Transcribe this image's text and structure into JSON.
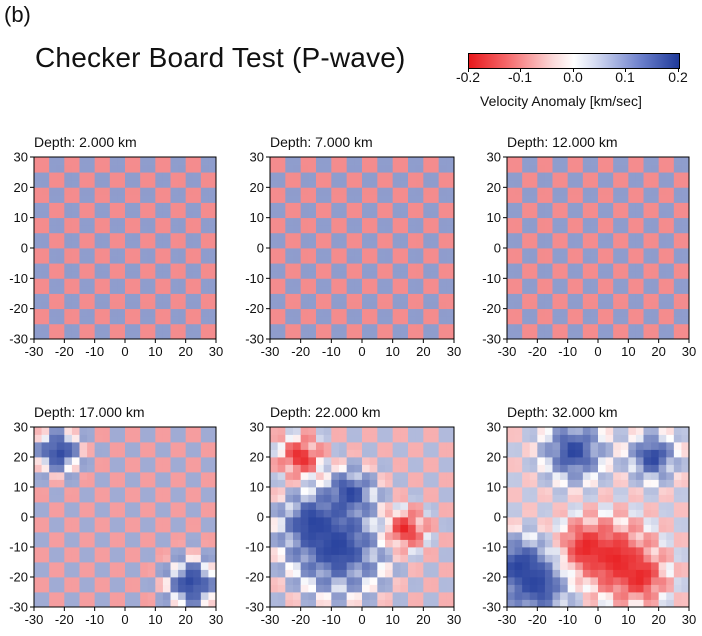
{
  "figure": {
    "panel_label": "(b)",
    "title": "Checker Board Test (P-wave)"
  },
  "colorbar": {
    "ticks": [
      "-0.2",
      "-0.1",
      "0.0",
      "0.1",
      "0.2"
    ],
    "label": "Velocity Anomaly [km/sec]",
    "colors": {
      "negative": "#e8191c",
      "zero": "#ffffff",
      "positive": "#1f3a9a"
    }
  },
  "chart_data": [
    {
      "type": "heatmap",
      "title": "Depth: 2.000 km",
      "xlim": [
        -30,
        30
      ],
      "ylim": [
        -30,
        30
      ],
      "xticks": [
        "-30",
        "-20",
        "-10",
        "0",
        "10",
        "20",
        "30"
      ],
      "yticks": [
        "-30",
        "-20",
        "-10",
        "0",
        "10",
        "20",
        "30"
      ],
      "checker_period_km": 10,
      "amplitude_range": [
        -0.2,
        0.2
      ],
      "recovery": "good"
    },
    {
      "type": "heatmap",
      "title": "Depth: 7.000 km",
      "xlim": [
        -30,
        30
      ],
      "ylim": [
        -30,
        30
      ],
      "xticks": [
        "-30",
        "-20",
        "-10",
        "0",
        "10",
        "20",
        "30"
      ],
      "yticks": [
        "-30",
        "-20",
        "-10",
        "0",
        "10",
        "20",
        "30"
      ],
      "checker_period_km": 10,
      "amplitude_range": [
        -0.2,
        0.2
      ],
      "recovery": "good"
    },
    {
      "type": "heatmap",
      "title": "Depth: 12.000 km",
      "xlim": [
        -30,
        30
      ],
      "ylim": [
        -30,
        30
      ],
      "xticks": [
        "-30",
        "-20",
        "-10",
        "0",
        "10",
        "20",
        "30"
      ],
      "yticks": [
        "-30",
        "-20",
        "-10",
        "0",
        "10",
        "20",
        "30"
      ],
      "checker_period_km": 10,
      "amplitude_range": [
        -0.2,
        0.2
      ],
      "recovery": "good"
    },
    {
      "type": "heatmap",
      "title": "Depth: 17.000 km",
      "xlim": [
        -30,
        30
      ],
      "ylim": [
        -30,
        30
      ],
      "xticks": [
        "-30",
        "-20",
        "-10",
        "0",
        "10",
        "20",
        "30"
      ],
      "yticks": [
        "-30",
        "-20",
        "-10",
        "0",
        "10",
        "20",
        "30"
      ],
      "checker_period_km": 10,
      "amplitude_range": [
        -0.2,
        0.2
      ],
      "recovery": "partial"
    },
    {
      "type": "heatmap",
      "title": "Depth: 22.000 km",
      "xlim": [
        -30,
        30
      ],
      "ylim": [
        -30,
        30
      ],
      "xticks": [
        "-30",
        "-20",
        "-10",
        "0",
        "10",
        "20",
        "30"
      ],
      "yticks": [
        "-30",
        "-20",
        "-10",
        "0",
        "10",
        "20",
        "30"
      ],
      "checker_period_km": 10,
      "amplitude_range": [
        -0.2,
        0.2
      ],
      "recovery": "poor"
    },
    {
      "type": "heatmap",
      "title": "Depth: 32.000 km",
      "xlim": [
        -30,
        30
      ],
      "ylim": [
        -30,
        30
      ],
      "xticks": [
        "-30",
        "-20",
        "-10",
        "0",
        "10",
        "20",
        "30"
      ],
      "yticks": [
        "-30",
        "-20",
        "-10",
        "0",
        "10",
        "20",
        "30"
      ],
      "checker_period_km": 10,
      "amplitude_range": [
        -0.2,
        0.2
      ],
      "recovery": "very poor"
    }
  ]
}
